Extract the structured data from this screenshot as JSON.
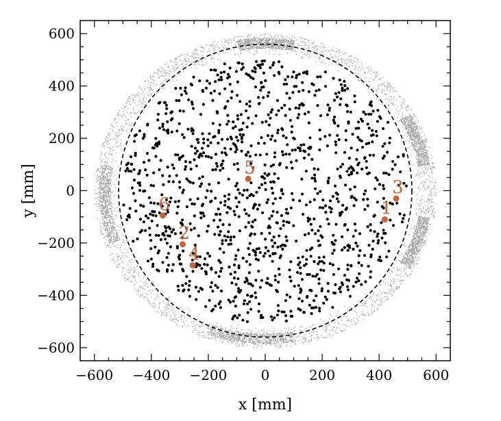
{
  "chart_data": {
    "type": "scatter",
    "xlabel": "x [mm]",
    "ylabel": "y [mm]",
    "xlim": [
      -650,
      650
    ],
    "ylim": [
      -650,
      650
    ],
    "xticks": [
      -600,
      -400,
      -200,
      0,
      200,
      400,
      600
    ],
    "yticks": [
      -600,
      -400,
      -200,
      0,
      200,
      400,
      600
    ],
    "xtick_labels": [
      "−600",
      "−400",
      "−200",
      "0",
      "200",
      "400",
      "600"
    ],
    "ytick_labels": [
      "−600",
      "−400",
      "−200",
      "0",
      "200",
      "400",
      "600"
    ],
    "grid": false,
    "dashed_circle_radius": 515,
    "series": [
      {
        "marker": "gray background ring",
        "ring_inner_radius": 520,
        "ring_outer_radius": 600
      },
      {
        "marker": "black dots",
        "points_within_radius": 515
      },
      {
        "marker": "highlighted events",
        "points": [
          {
            "label": "1",
            "x": 420,
            "y": -110
          },
          {
            "label": "2",
            "x": -290,
            "y": -205
          },
          {
            "label": "3",
            "x": 460,
            "y": -30
          },
          {
            "label": "4",
            "x": -255,
            "y": -285
          },
          {
            "label": "5",
            "x": -60,
            "y": 45
          },
          {
            "label": "6",
            "x": -360,
            "y": -95
          }
        ]
      }
    ],
    "colors": {
      "ring": "#a8a8a8",
      "dots": "#000000",
      "events": "#c0663f"
    }
  }
}
